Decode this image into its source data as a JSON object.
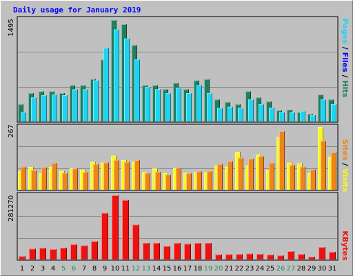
{
  "title": "Daily usage for January 2019",
  "colors": {
    "hits": "#1f7f5f",
    "files": "#1fd3f3",
    "visits": "#f8f820",
    "sites": "#ef8418",
    "kbytes": "#ef1010",
    "weekend_day": "#1f8f5f",
    "weekday_day": "#000000"
  },
  "chart_data": [
    {
      "type": "bar",
      "title": "",
      "categories": [
        "1",
        "2",
        "3",
        "4",
        "5",
        "6",
        "7",
        "8",
        "9",
        "10",
        "11",
        "12",
        "13",
        "14",
        "15",
        "16",
        "17",
        "18",
        "19",
        "20",
        "21",
        "22",
        "23",
        "24",
        "25",
        "26",
        "27",
        "28",
        "29",
        "30",
        "31"
      ],
      "weekend_days": [
        "5",
        "6",
        "12",
        "13",
        "19",
        "20",
        "26",
        "27"
      ],
      "series": [
        {
          "name": "Hits",
          "values": [
            252,
            416,
            443,
            443,
            416,
            534,
            534,
            623,
            913,
            1495,
            1434,
            1125,
            534,
            534,
            474,
            566,
            474,
            605,
            623,
            323,
            286,
            252,
            443,
            353,
            293,
            162,
            173,
            135,
            111,
            396,
            323
          ]
        },
        {
          "name": "Files",
          "values": [
            135,
            353,
            386,
            396,
            386,
            474,
            474,
            605,
            1086,
            1356,
            1222,
            913,
            505,
            474,
            416,
            494,
            416,
            534,
            416,
            199,
            216,
            199,
            323,
            253,
            203,
            135,
            135,
            154,
            93,
            323,
            253
          ]
        }
      ],
      "ymax": 1495,
      "ytick_label": "1495",
      "right_label": [
        "Pages",
        "Files",
        "Hits"
      ]
    },
    {
      "type": "bar",
      "title": "",
      "categories": [
        "1",
        "2",
        "3",
        "4",
        "5",
        "6",
        "7",
        "8",
        "9",
        "10",
        "11",
        "12",
        "13",
        "14",
        "15",
        "16",
        "17",
        "18",
        "19",
        "20",
        "21",
        "22",
        "23",
        "24",
        "25",
        "26",
        "27",
        "28",
        "29",
        "30",
        "31"
      ],
      "series": [
        {
          "name": "Visits",
          "values": [
            78,
            97,
            70,
            97,
            80,
            92,
            85,
            118,
            116,
            145,
            126,
            120,
            75,
            90,
            71,
            92,
            72,
            75,
            75,
            103,
            98,
            161,
            104,
            150,
            85,
            224,
            115,
            112,
            70,
            267,
            140
          ]
        },
        {
          "name": "Sites",
          "values": [
            98,
            83,
            95,
            114,
            72,
            90,
            75,
            109,
            116,
            127,
            118,
            126,
            72,
            76,
            64,
            94,
            70,
            78,
            80,
            109,
            121,
            136,
            132,
            142,
            114,
            249,
            105,
            98,
            86,
            208,
            159
          ]
        }
      ],
      "ymax": 267,
      "ytick_label": "267",
      "right_label": [
        "Sites",
        "Visits"
      ]
    },
    {
      "type": "bar",
      "title": "",
      "categories": [
        "1",
        "2",
        "3",
        "4",
        "5",
        "6",
        "7",
        "8",
        "9",
        "10",
        "11",
        "12",
        "13",
        "14",
        "15",
        "16",
        "17",
        "18",
        "19",
        "20",
        "21",
        "22",
        "23",
        "24",
        "25",
        "26",
        "27",
        "28",
        "29",
        "30",
        "31"
      ],
      "series": [
        {
          "name": "KBytes",
          "values": [
            17000,
            57000,
            61000,
            55000,
            62000,
            80000,
            74000,
            96000,
            247000,
            341000,
            316000,
            185000,
            88000,
            88000,
            71000,
            88000,
            83000,
            88000,
            88000,
            26000,
            27000,
            28000,
            31000,
            29000,
            25000,
            21000,
            44000,
            28000,
            14000,
            66000,
            40000
          ]
        }
      ],
      "ymax": 341000,
      "ytick_value": 281270,
      "ytick_label": "281270",
      "right_label": [
        "KBytes"
      ]
    }
  ]
}
